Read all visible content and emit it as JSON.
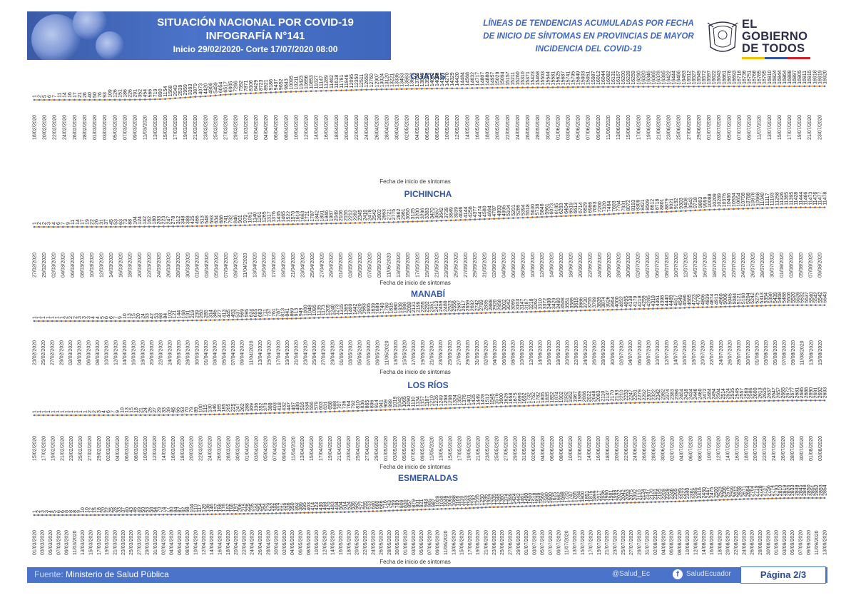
{
  "header": {
    "title_line1": "SITUACIÓN NACIONAL POR  COVID-19",
    "title_line2": "INFOGRAFÍA N°141",
    "title_line3": "Inicio 29/02/2020- Corte 17/07/2020 08:00",
    "subtitle_line1": "LÍNEAS DE TENDENCIAS ACUMULADAS POR FECHA",
    "subtitle_line2": "DE INICIO DE SÍNTOMAS EN PROVINCIAS DE MAYOR",
    "subtitle_line3": "INCIDENCIA DEL COVID-19"
  },
  "logo": {
    "line1": "EL",
    "line2": "GOBIERNO",
    "line3": "DE TODOS",
    "colors": [
      "#f5c400",
      "#2f55a4",
      "#d3202a"
    ]
  },
  "colors": {
    "accent": "#4a73c9",
    "line": "#f28c28",
    "marker": "#4472c4",
    "province_title": "#2f55a4"
  },
  "footer": {
    "source_label": "Fuente:",
    "source": "Ministerio de Salud Pública",
    "twitter": "@Salud_Ec",
    "facebook": "SaludEcuador",
    "page": "Página 2/3"
  },
  "chart_data": [
    {
      "type": "line",
      "title": "GUAYAS",
      "xlabel": "Fecha de inicio de síntomas",
      "ylabel": "",
      "start_date": "2020-02-18",
      "end_date": "2020-07-12",
      "x_tick_every_days": 2,
      "ylim": [
        0,
        17500
      ],
      "values": [
        1,
        2,
        5,
        6,
        7,
        11,
        14,
        16,
        17,
        21,
        26,
        40,
        50,
        76,
        93,
        109,
        126,
        151,
        186,
        226,
        291,
        352,
        454,
        566,
        719,
        890,
        1154,
        1568,
        2043,
        2539,
        2959,
        3393,
        3879,
        4073,
        4420,
        4906,
        5459,
        6054,
        6517,
        6905,
        7266,
        7592,
        7871,
        8106,
        8429,
        8723,
        8921,
        9186,
        9437,
        9652,
        9843,
        10095,
        10211,
        10423,
        10656,
        10853,
        11027,
        11147,
        11289,
        11462,
        11618,
        11791,
        11946,
        12095,
        12350,
        12511,
        12650,
        12760,
        12907,
        13024,
        13120,
        13221,
        13335,
        13453,
        13563,
        13672,
        13756,
        13845,
        13920,
        14002,
        14088,
        14187,
        14270,
        14329,
        14420,
        14484,
        14568,
        14632,
        14717,
        14807,
        14880,
        14957,
        15029,
        15094,
        15157,
        15211,
        15260,
        15310,
        15371,
        15423,
        15468,
        15503,
        15544,
        15581,
        15625,
        15687,
        15741,
        15795,
        15849,
        15903,
        15951,
        15987,
        16012,
        16044,
        16082,
        16131,
        16167,
        16200,
        16228,
        16259,
        16290,
        16320,
        16346,
        16365,
        16378,
        16395,
        16422,
        16444,
        16466,
        16493,
        16512,
        16527,
        16549,
        16572,
        16597,
        16622,
        16643,
        16661,
        16678,
        16693,
        16718,
        16736,
        16751,
        16768,
        16785,
        16795,
        16810,
        16824,
        16844,
        16864,
        16888,
        16897,
        16905,
        16911,
        16915,
        16918,
        16919,
        16920
      ]
    },
    {
      "type": "line",
      "title": "PICHINCHA",
      "xlabel": "Fecha de inicio de síntomas",
      "ylabel": "",
      "start_date": "2020-02-27",
      "end_date": "2020-07-14",
      "x_tick_every_days": 2,
      "ylim": [
        0,
        12000
      ],
      "values": [
        1,
        2,
        2,
        3,
        4,
        6,
        7,
        9,
        11,
        14,
        17,
        19,
        22,
        26,
        31,
        37,
        45,
        53,
        63,
        73,
        88,
        104,
        124,
        142,
        162,
        180,
        203,
        223,
        247,
        278,
        312,
        348,
        388,
        425,
        466,
        513,
        548,
        593,
        634,
        688,
        741,
        792,
        846,
        901,
        979,
        1051,
        1140,
        1201,
        1265,
        1317,
        1376,
        1435,
        1465,
        1522,
        1570,
        1618,
        1663,
        1721,
        1787,
        1842,
        1891,
        1946,
        1987,
        2049,
        2106,
        2155,
        2212,
        2282,
        2345,
        2410,
        2478,
        2542,
        2602,
        2663,
        2721,
        2775,
        2862,
        2961,
        3050,
        3125,
        3200,
        3296,
        3383,
        3470,
        3557,
        3642,
        3739,
        3849,
        3939,
        4046,
        4144,
        4258,
        4377,
        4474,
        4580,
        4694,
        4787,
        4893,
        4995,
        5104,
        5201,
        5286,
        5394,
        5518,
        5630,
        5738,
        5846,
        5961,
        6073,
        6185,
        6293,
        6404,
        6519,
        6613,
        6714,
        6829,
        6966,
        7093,
        7200,
        7320,
        7464,
        7603,
        7764,
        7931,
        8072,
        8193,
        8309,
        8421,
        8509,
        8612,
        8718,
        8801,
        8879,
        9021,
        9192,
        9303,
        9408,
        9543,
        9718,
        9863,
        9999,
        10088,
        10209,
        10289,
        10376,
        10466,
        10554,
        10654,
        10708,
        10788,
        10878,
        10968,
        11040,
        11117,
        11193,
        11258,
        11326,
        11365,
        11395,
        11428,
        11444,
        11466,
        11473,
        11476,
        11477,
        11478
      ]
    },
    {
      "type": "line",
      "title": "MANABÍ",
      "xlabel": "Fecha de inicio de síntomas",
      "ylabel": "",
      "start_date": "2020-02-23",
      "end_date": "2020-07-10",
      "x_tick_every_days": 2,
      "ylim": [
        0,
        6000
      ],
      "values": [
        1,
        1,
        1,
        1,
        1,
        1,
        1,
        2,
        2,
        2,
        3,
        3,
        3,
        4,
        4,
        5,
        6,
        6,
        7,
        9,
        10,
        13,
        15,
        20,
        24,
        33,
        42,
        53,
        68,
        84,
        102,
        121,
        144,
        168,
        191,
        219,
        239,
        260,
        285,
        314,
        345,
        377,
        413,
        445,
        493,
        537,
        569,
        595,
        624,
        655,
        683,
        711,
        737,
        761,
        787,
        813,
        841,
        869,
        913,
        949,
        1000,
        1048,
        1095,
        1135,
        1173,
        1205,
        1240,
        1273,
        1315,
        1365,
        1400,
        1442,
        1520,
        1563,
        1605,
        1639,
        1689,
        1740,
        1780,
        1816,
        1880,
        1939,
        1998,
        2058,
        2131,
        2199,
        2255,
        2292,
        2351,
        2413,
        2459,
        2489,
        2523,
        2556,
        2587,
        2617,
        2659,
        2692,
        2742,
        2789,
        2835,
        2888,
        2920,
        2958,
        3002,
        3042,
        3069,
        3103,
        3147,
        3187,
        3218,
        3262,
        3310,
        3372,
        3408,
        3429,
        3480,
        3508,
        3551,
        3589,
        3616,
        3666,
        3720,
        3755,
        3799,
        3839,
        3874,
        3926,
        3954,
        4000,
        4052,
        4095,
        4138,
        4179,
        4218,
        4259,
        4285,
        4318,
        4361,
        4398,
        4440,
        4489,
        4517,
        4549,
        4596,
        4685,
        4723,
        4776,
        4806,
        4839,
        4874,
        4913,
        4960,
        5006,
        5045,
        5084,
        5121,
        5160,
        5204,
        5242,
        5275,
        5313,
        5354,
        5398,
        5439,
        5468,
        5488,
        5506,
        5520,
        5526,
        5532,
        5537,
        5540,
        5542,
        5542,
        5543
      ]
    },
    {
      "type": "line",
      "title": "LOS RÍOS",
      "xlabel": "Fecha de inicio de síntomas",
      "ylabel": "",
      "start_date": "2020-02-15",
      "end_date": "2020-07-09",
      "x_tick_every_days": 2,
      "ylim": [
        0,
        3000
      ],
      "values": [
        1,
        1,
        1,
        1,
        1,
        1,
        1,
        1,
        1,
        1,
        1,
        1,
        2,
        2,
        3,
        4,
        6,
        7,
        9,
        10,
        13,
        15,
        18,
        21,
        24,
        26,
        27,
        29,
        33,
        39,
        46,
        55,
        63,
        70,
        79,
        89,
        100,
        115,
        130,
        146,
        165,
        185,
        205,
        225,
        247,
        262,
        288,
        309,
        336,
        352,
        370,
        388,
        403,
        418,
        432,
        447,
        467,
        489,
        516,
        534,
        556,
        579,
        603,
        631,
        658,
        688,
        707,
        736,
        764,
        792,
        810,
        836,
        865,
        896,
        914,
        941,
        969,
        999,
        1019,
        1042,
        1065,
        1090,
        1110,
        1134,
        1157,
        1187,
        1210,
        1226,
        1249,
        1268,
        1298,
        1324,
        1350,
        1376,
        1401,
        1425,
        1449,
        1478,
        1512,
        1545,
        1576,
        1600,
        1626,
        1658,
        1675,
        1690,
        1692,
        1732,
        1762,
        1782,
        1805,
        1835,
        1852,
        1874,
        1902,
        1932,
        1952,
        1967,
        1989,
        2006,
        2022,
        2048,
        2083,
        2110,
        2137,
        2170,
        2193,
        2210,
        2233,
        2247,
        2261,
        2279,
        2292,
        2307,
        2322,
        2342,
        2362,
        2374,
        2383,
        2396,
        2404,
        2418,
        2434,
        2446,
        2460,
        2472,
        2484,
        2494,
        2504,
        2514,
        2524,
        2535,
        2545,
        2557,
        2569,
        2586,
        2600,
        2613,
        2625,
        2637,
        2647,
        2657,
        2665,
        2672,
        2677,
        2681,
        2685,
        2688,
        2690,
        2691,
        2692,
        2693
      ]
    },
    {
      "type": "line",
      "title": "ESMERALDAS",
      "xlabel": "Fecha de inicio de síntomas",
      "ylabel": "",
      "start_date": "2020-03-01",
      "end_date": "2020-07-10",
      "x_tick_every_days": 2,
      "ylim": [
        0,
        3000
      ],
      "values": [
        1,
        2,
        3,
        3,
        4,
        5,
        6,
        6,
        8,
        8,
        8,
        9,
        10,
        10,
        12,
        15,
        18,
        20,
        22,
        25,
        28,
        33,
        37,
        40,
        43,
        46,
        49,
        50,
        53,
        58,
        64,
        70,
        74,
        77,
        80,
        84,
        87,
        92,
        98,
        104,
        110,
        117,
        126,
        136,
        146,
        157,
        168,
        176,
        182,
        190,
        197,
        206,
        215,
        225,
        235,
        244,
        254,
        264,
        279,
        292,
        306,
        317,
        326,
        336,
        350,
        362,
        386,
        395,
        403,
        414,
        423,
        436,
        458,
        470,
        483,
        494,
        504,
        514,
        524,
        536,
        562,
        577,
        595,
        613,
        640,
        660,
        686,
        716,
        743,
        769,
        789,
        809,
        830,
        857,
        879,
        901,
        921,
        943,
        965,
        987,
        1009,
        1030,
        1049,
        1065,
        1088,
        1105,
        1119,
        1133,
        1163,
        1192,
        1220,
        1250,
        1285,
        1319,
        1335,
        1348,
        1360,
        1374,
        1399,
        1424,
        1442,
        1461,
        1490,
        1500,
        1518,
        1539,
        1560,
        1580,
        1600,
        1625,
        1662,
        1698,
        1720,
        1747,
        1765,
        1784,
        1800,
        1851,
        1875,
        1899,
        1917,
        1936,
        1960,
        1981,
        1998,
        2022,
        2042,
        2063,
        2075,
        2092,
        2110,
        2124,
        2147,
        2170,
        2181,
        2195,
        2209,
        2229,
        2246,
        2265,
        2295,
        2322,
        2340,
        2361,
        2385,
        2416,
        2430,
        2447,
        2475,
        2500,
        2523,
        2556,
        2576,
        2599,
        2612,
        2638,
        2671,
        2684,
        2704,
        2719,
        2728,
        2737,
        2756,
        2774,
        2793,
        2810,
        2819,
        2826,
        2833,
        2839,
        2845,
        2848,
        2850,
        2851,
        2852,
        2853,
        2854
      ]
    }
  ]
}
